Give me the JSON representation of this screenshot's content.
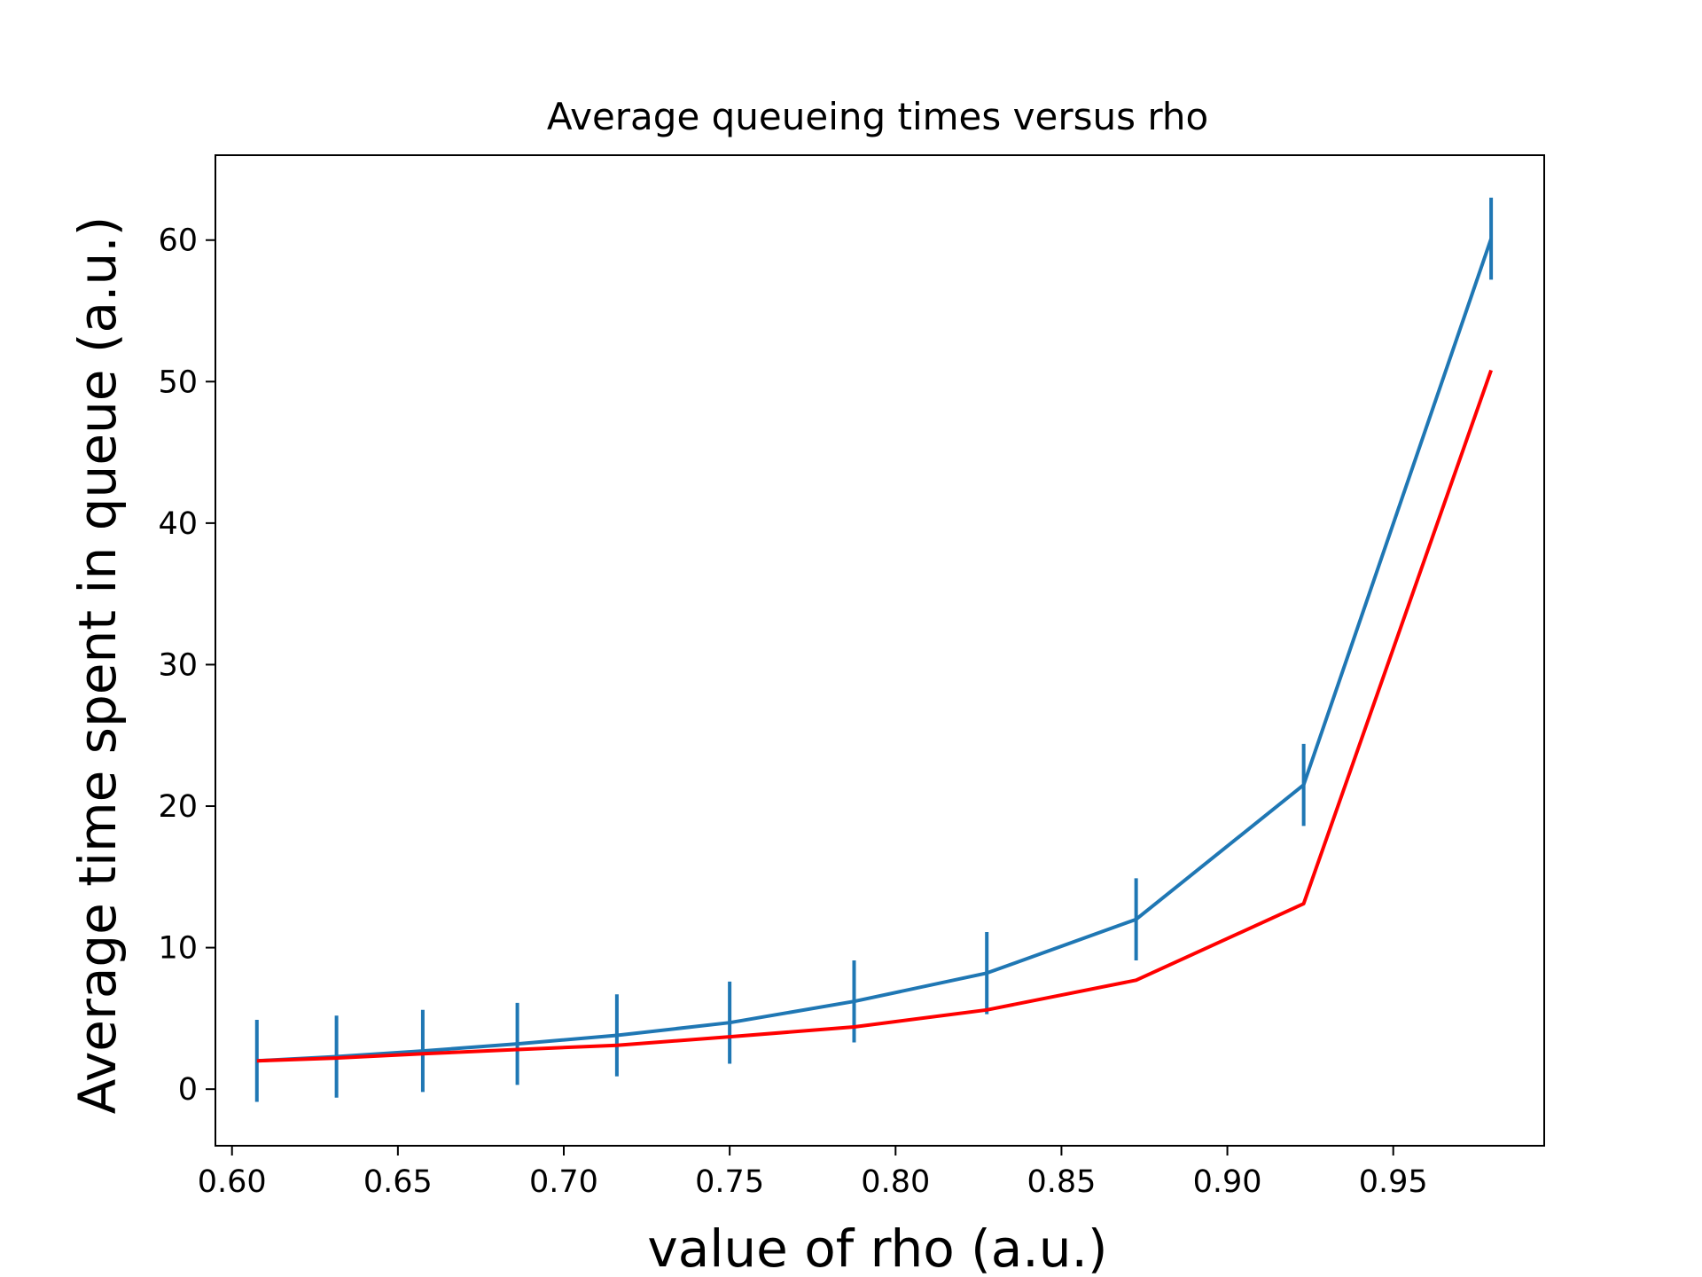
{
  "chart_data": {
    "type": "line",
    "title": "Average queueing times versus rho",
    "xlabel": "value of rho (a.u.)",
    "ylabel": "Average time spent in queue (a.u.)",
    "xlim": [
      0.595,
      0.9955
    ],
    "ylim": [
      -4,
      66
    ],
    "xticks": [
      0.6,
      0.65,
      0.7,
      0.75,
      0.8,
      0.85,
      0.9,
      0.95
    ],
    "xtick_labels": [
      "0.60",
      "0.65",
      "0.70",
      "0.75",
      "0.80",
      "0.85",
      "0.90",
      "0.95"
    ],
    "yticks": [
      0,
      10,
      20,
      30,
      40,
      50,
      60
    ],
    "ytick_labels": [
      "0",
      "10",
      "20",
      "30",
      "40",
      "50",
      "60"
    ],
    "grid": false,
    "x": [
      0.6075,
      0.6315,
      0.6575,
      0.686,
      0.716,
      0.75,
      0.7875,
      0.8275,
      0.8725,
      0.923,
      0.9795
    ],
    "series": [
      {
        "color": "#1f77b4",
        "values": [
          2.0,
          2.3,
          2.7,
          3.2,
          3.8,
          4.7,
          6.2,
          8.2,
          12.0,
          21.5,
          60.1
        ],
        "errors": [
          2.9,
          2.9,
          2.9,
          2.9,
          2.9,
          2.9,
          2.9,
          2.9,
          2.9,
          2.9,
          2.9
        ]
      },
      {
        "color": "#ff0000",
        "values": [
          2.0,
          2.2,
          2.5,
          2.8,
          3.1,
          3.7,
          4.4,
          5.6,
          7.7,
          13.1,
          50.8
        ]
      }
    ]
  }
}
